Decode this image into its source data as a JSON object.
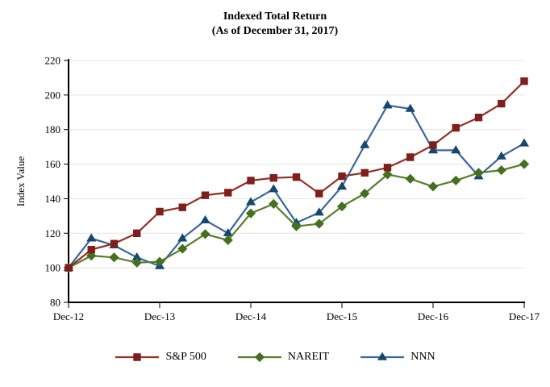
{
  "chart_data": {
    "type": "line",
    "title": "Indexed Total Return",
    "subtitle": "(As of December 31, 2017)",
    "ylabel": "Index Value",
    "ylim": [
      80,
      220
    ],
    "ytick_step": 20,
    "yticks": [
      80,
      100,
      120,
      140,
      160,
      180,
      200,
      220
    ],
    "x_tick_labels": [
      "Dec-12",
      "Dec-13",
      "Dec-14",
      "Dec-15",
      "Dec-16",
      "Dec-17"
    ],
    "points_per_year": 4,
    "grid": "horizontal-light",
    "gridline_color": "#E3E3E3",
    "axis_color": "#000000",
    "legend_position": "bottom",
    "series": [
      {
        "name": "S&P 500",
        "marker": "square",
        "line_color": "#942F23",
        "marker_color": "#7E1F1C",
        "values": [
          100,
          110.5,
          114,
          120,
          132.5,
          135,
          142,
          143.5,
          150.5,
          152,
          152.5,
          143,
          153,
          155,
          158,
          164,
          171,
          181,
          187,
          195,
          208
        ]
      },
      {
        "name": "NAREIT",
        "marker": "diamond",
        "line_color": "#54802B",
        "marker_color": "#44701F",
        "values": [
          100,
          107,
          106,
          103,
          103.5,
          111,
          119.5,
          116,
          131.5,
          137,
          124,
          125.5,
          135.5,
          143,
          154,
          151.5,
          147,
          150.5,
          155,
          156.5,
          160
        ]
      },
      {
        "name": "NNN",
        "marker": "triangle",
        "line_color": "#38679B",
        "marker_color": "#16476D",
        "values": [
          100,
          117,
          113,
          106,
          101,
          117,
          127.5,
          120,
          138,
          145.5,
          126,
          132,
          147,
          171,
          194,
          192,
          168,
          168,
          153,
          164.5,
          172
        ]
      }
    ],
    "draw_order": [
      2,
      1,
      0
    ]
  }
}
